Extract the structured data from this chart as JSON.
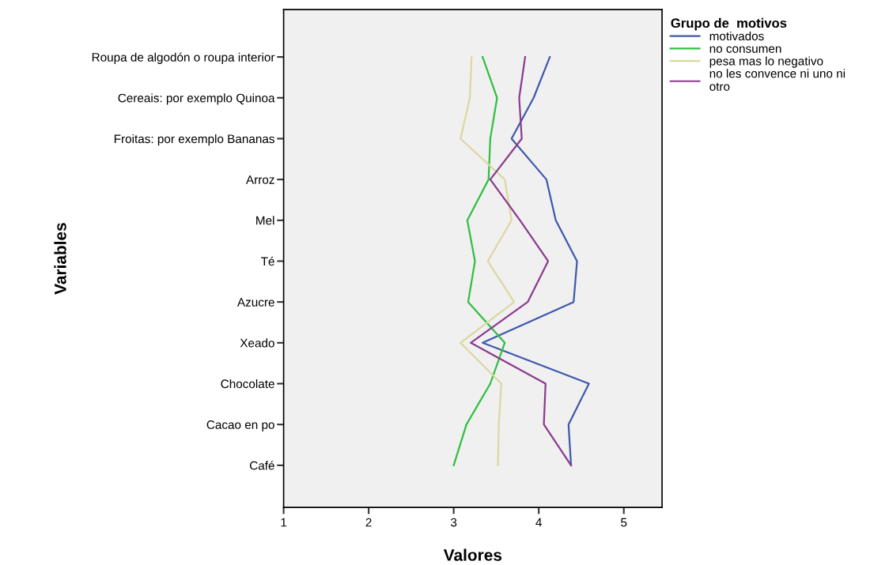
{
  "chart_data": {
    "type": "line",
    "orientation": "horizontal",
    "xlabel": "Valores",
    "ylabel": "Variables",
    "legend_title": "Grupo de  motivos",
    "legend": "top right",
    "grid": false,
    "marker": "none",
    "line_style": "solid",
    "categories": [
      "Roupa de algodón o roupa interior",
      "Cereais: por exemplo Quinoa",
      "Froitas: por exemplo Bananas",
      "Arroz",
      "Mel",
      "Té",
      "Azucre",
      "Xeado",
      "Chocolate",
      "Cacao en po",
      "Café"
    ],
    "xlim": [
      1,
      5.45
    ],
    "xticks": [
      1,
      2,
      3,
      4,
      5
    ],
    "series": [
      {
        "name": "motivados",
        "color": "#3e58ac",
        "values": [
          4.13,
          3.94,
          3.68,
          4.09,
          4.2,
          4.45,
          4.41,
          3.34,
          4.59,
          4.35,
          4.38
        ]
      },
      {
        "name": "no consumen",
        "color": "#2fbf3f",
        "values": [
          3.34,
          3.51,
          3.43,
          3.41,
          3.16,
          3.25,
          3.17,
          3.6,
          3.43,
          3.15,
          3.0
        ]
      },
      {
        "name": "pesa mas lo negativo",
        "color": "#dcd7a0",
        "values": [
          3.21,
          3.19,
          3.08,
          3.6,
          3.68,
          3.4,
          3.71,
          3.08,
          3.56,
          3.53,
          3.52
        ]
      },
      {
        "name": "no les convence ni uno ni\notro",
        "color": "#8b3a8e",
        "values": [
          3.84,
          3.77,
          3.8,
          3.43,
          3.78,
          4.11,
          3.87,
          3.2,
          4.08,
          4.06,
          4.38
        ]
      }
    ]
  }
}
